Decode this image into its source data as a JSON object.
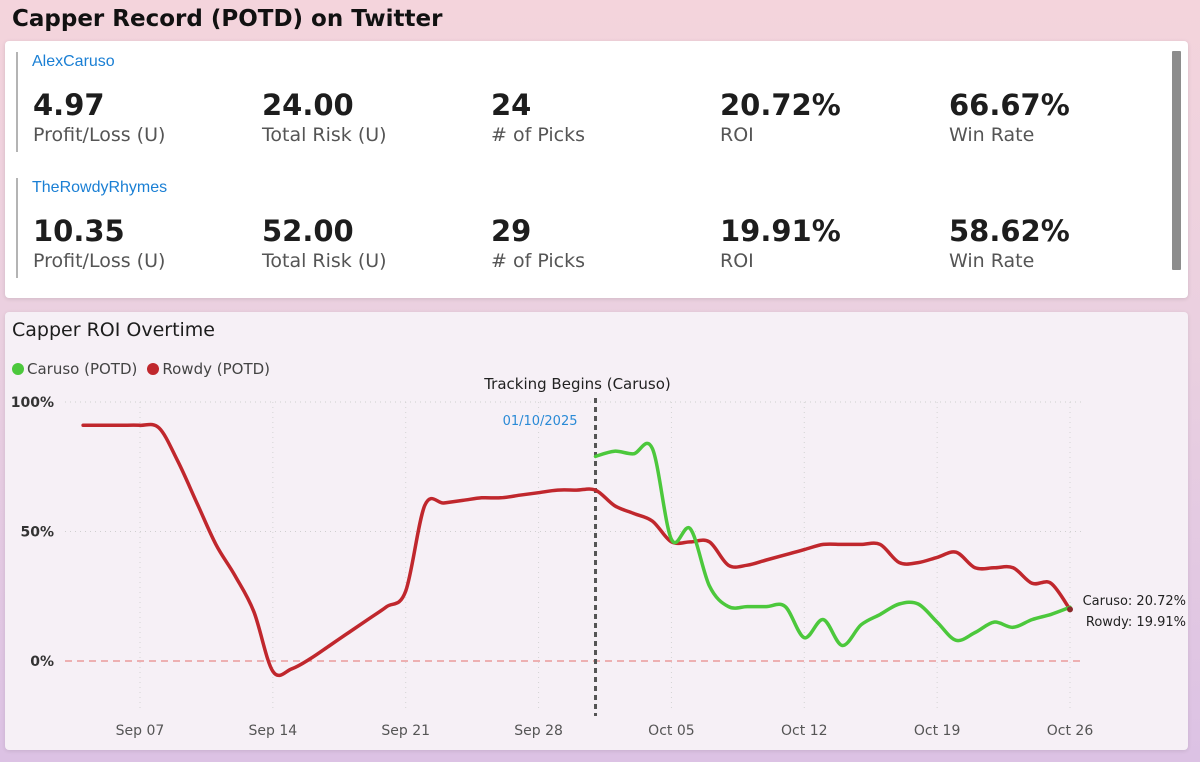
{
  "page": {
    "title": "Capper Record (POTD) on Twitter"
  },
  "cappers": [
    {
      "name": "AlexCaruso",
      "metrics": [
        {
          "value": "4.97",
          "label": "Profit/Loss (U)"
        },
        {
          "value": "24.00",
          "label": "Total Risk (U)"
        },
        {
          "value": "24",
          "label": "# of Picks"
        },
        {
          "value": "20.72%",
          "label": "ROI"
        },
        {
          "value": "66.67%",
          "label": "Win Rate"
        }
      ]
    },
    {
      "name": "TheRowdyRhymes",
      "metrics": [
        {
          "value": "10.35",
          "label": "Profit/Loss (U)"
        },
        {
          "value": "52.00",
          "label": "Total Risk (U)"
        },
        {
          "value": "29",
          "label": "# of Picks"
        },
        {
          "value": "19.91%",
          "label": "ROI"
        },
        {
          "value": "58.62%",
          "label": "Win Rate"
        }
      ]
    }
  ],
  "chart_data": {
    "type": "line",
    "title": "Capper ROI Overtime",
    "x_axis_type": "date",
    "y_unit": "%",
    "ylim": [
      -5,
      100
    ],
    "y_ticks": [
      "100%",
      "50%",
      "0%"
    ],
    "y_tick_values": [
      100,
      50,
      0
    ],
    "x_tick_labels": [
      "Sep 07",
      "Sep 14",
      "Sep 21",
      "Sep 28",
      "Oct 05",
      "Oct 12",
      "Oct 19",
      "Oct 26"
    ],
    "x_tick_dates": [
      "2025-09-07",
      "2025-09-14",
      "2025-09-21",
      "2025-09-28",
      "2025-10-05",
      "2025-10-12",
      "2025-10-19",
      "2025-10-26"
    ],
    "grid": true,
    "legend_position": "top-left",
    "annotation": {
      "label": "Tracking Begins (Caruso)",
      "date_label": "01/10/2025",
      "x": "2025-10-01"
    },
    "zero_line": true,
    "series": [
      {
        "name": "Caruso (POTD)",
        "color": "#4cc83c",
        "end_label": "Caruso: 20.72%",
        "points": [
          [
            "2025-10-01",
            79
          ],
          [
            "2025-10-02",
            81
          ],
          [
            "2025-10-03",
            80
          ],
          [
            "2025-10-04",
            82
          ],
          [
            "2025-10-05",
            47
          ],
          [
            "2025-10-06",
            51
          ],
          [
            "2025-10-07",
            29
          ],
          [
            "2025-10-08",
            21
          ],
          [
            "2025-10-09",
            21
          ],
          [
            "2025-10-10",
            21
          ],
          [
            "2025-10-11",
            21
          ],
          [
            "2025-10-12",
            9
          ],
          [
            "2025-10-13",
            16
          ],
          [
            "2025-10-14",
            6
          ],
          [
            "2025-10-15",
            14
          ],
          [
            "2025-10-16",
            18
          ],
          [
            "2025-10-17",
            22
          ],
          [
            "2025-10-18",
            22
          ],
          [
            "2025-10-19",
            15
          ],
          [
            "2025-10-20",
            8
          ],
          [
            "2025-10-21",
            11
          ],
          [
            "2025-10-22",
            15
          ],
          [
            "2025-10-23",
            13
          ],
          [
            "2025-10-24",
            16
          ],
          [
            "2025-10-25",
            18
          ],
          [
            "2025-10-26",
            20.72
          ]
        ]
      },
      {
        "name": "Rowdy (POTD)",
        "color": "#c0272d",
        "end_label": "Rowdy: 19.91%",
        "points": [
          [
            "2025-09-04",
            91
          ],
          [
            "2025-09-05",
            91
          ],
          [
            "2025-09-06",
            91
          ],
          [
            "2025-09-07",
            91
          ],
          [
            "2025-09-08",
            90
          ],
          [
            "2025-09-09",
            77
          ],
          [
            "2025-09-10",
            61
          ],
          [
            "2025-09-11",
            45
          ],
          [
            "2025-09-12",
            33
          ],
          [
            "2025-09-13",
            19
          ],
          [
            "2025-09-14",
            -4
          ],
          [
            "2025-09-15",
            -3
          ],
          [
            "2025-09-16",
            1
          ],
          [
            "2025-09-17",
            6
          ],
          [
            "2025-09-18",
            11
          ],
          [
            "2025-09-19",
            16
          ],
          [
            "2025-09-20",
            21
          ],
          [
            "2025-09-21",
            27
          ],
          [
            "2025-09-22",
            60
          ],
          [
            "2025-09-23",
            61
          ],
          [
            "2025-09-24",
            62
          ],
          [
            "2025-09-25",
            63
          ],
          [
            "2025-09-26",
            63
          ],
          [
            "2025-09-27",
            64
          ],
          [
            "2025-09-28",
            65
          ],
          [
            "2025-09-29",
            66
          ],
          [
            "2025-09-30",
            66
          ],
          [
            "2025-10-01",
            66
          ],
          [
            "2025-10-02",
            60
          ],
          [
            "2025-10-03",
            57
          ],
          [
            "2025-10-04",
            54
          ],
          [
            "2025-10-05",
            46
          ],
          [
            "2025-10-06",
            46
          ],
          [
            "2025-10-07",
            46
          ],
          [
            "2025-10-08",
            37
          ],
          [
            "2025-10-09",
            37
          ],
          [
            "2025-10-10",
            39
          ],
          [
            "2025-10-11",
            41
          ],
          [
            "2025-10-12",
            43
          ],
          [
            "2025-10-13",
            45
          ],
          [
            "2025-10-14",
            45
          ],
          [
            "2025-10-15",
            45
          ],
          [
            "2025-10-16",
            45
          ],
          [
            "2025-10-17",
            38
          ],
          [
            "2025-10-18",
            38
          ],
          [
            "2025-10-19",
            40
          ],
          [
            "2025-10-20",
            42
          ],
          [
            "2025-10-21",
            36
          ],
          [
            "2025-10-22",
            36
          ],
          [
            "2025-10-23",
            36
          ],
          [
            "2025-10-24",
            30
          ],
          [
            "2025-10-25",
            30
          ],
          [
            "2025-10-26",
            19.91
          ]
        ]
      }
    ]
  }
}
